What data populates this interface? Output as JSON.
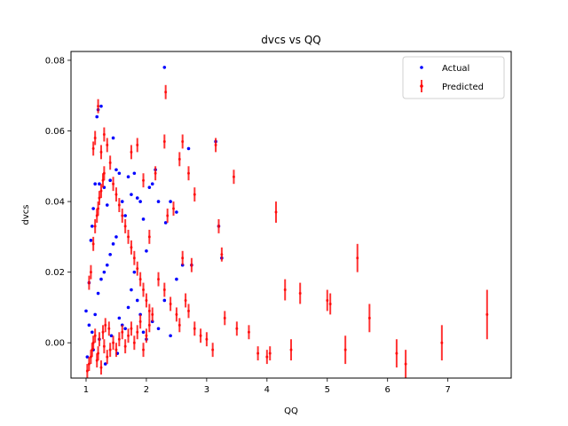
{
  "chart_data": {
    "type": "scatter",
    "title": "dvcs vs QQ",
    "xlabel": "QQ",
    "ylabel": "dvcs",
    "xlim": [
      0.75,
      8.05
    ],
    "ylim": [
      -0.01,
      0.0825
    ],
    "xticks": [
      1,
      2,
      3,
      4,
      5,
      6,
      7
    ],
    "xtick_labels": [
      "1",
      "2",
      "3",
      "4",
      "5",
      "6",
      "7"
    ],
    "yticks": [
      0.0,
      0.02,
      0.04,
      0.06,
      0.08
    ],
    "ytick_labels": [
      "0.00",
      "0.02",
      "0.04",
      "0.06",
      "0.08"
    ],
    "grid": false,
    "legend_position": "top-right",
    "colors": {
      "actual": "#0000ff",
      "predicted": "#ff0000"
    },
    "series": [
      {
        "name": "Actual",
        "kind": "points",
        "points": [
          [
            1.0,
            0.009
          ],
          [
            1.05,
            0.017
          ],
          [
            1.08,
            0.029
          ],
          [
            1.1,
            0.033
          ],
          [
            1.12,
            0.038
          ],
          [
            1.15,
            0.045
          ],
          [
            1.18,
            0.064
          ],
          [
            1.2,
            0.066
          ],
          [
            1.25,
            0.067
          ],
          [
            1.22,
            0.045
          ],
          [
            1.3,
            0.044
          ],
          [
            1.35,
            0.039
          ],
          [
            1.4,
            0.046
          ],
          [
            1.45,
            0.058
          ],
          [
            1.5,
            0.049
          ],
          [
            1.55,
            0.048
          ],
          [
            1.6,
            0.04
          ],
          [
            1.65,
            0.036
          ],
          [
            1.7,
            0.047
          ],
          [
            1.75,
            0.042
          ],
          [
            1.8,
            0.048
          ],
          [
            1.85,
            0.041
          ],
          [
            1.9,
            0.04
          ],
          [
            1.95,
            0.035
          ],
          [
            2.0,
            0.026
          ],
          [
            2.05,
            0.044
          ],
          [
            2.1,
            0.045
          ],
          [
            2.15,
            0.049
          ],
          [
            2.2,
            0.04
          ],
          [
            2.3,
            0.078
          ],
          [
            2.32,
            0.034
          ],
          [
            2.4,
            0.04
          ],
          [
            2.5,
            0.037
          ],
          [
            2.6,
            0.022
          ],
          [
            2.7,
            0.055
          ],
          [
            2.75,
            0.022
          ],
          [
            3.15,
            0.057
          ],
          [
            3.25,
            0.024
          ],
          [
            3.2,
            0.033
          ],
          [
            1.05,
            0.005
          ],
          [
            1.1,
            0.003
          ],
          [
            1.15,
            0.008
          ],
          [
            1.2,
            0.014
          ],
          [
            1.25,
            0.018
          ],
          [
            1.3,
            0.02
          ],
          [
            1.35,
            0.022
          ],
          [
            1.4,
            0.025
          ],
          [
            1.45,
            0.028
          ],
          [
            1.5,
            0.03
          ],
          [
            1.55,
            0.007
          ],
          [
            1.6,
            0.005
          ],
          [
            1.65,
            0.004
          ],
          [
            1.7,
            0.01
          ],
          [
            1.75,
            0.015
          ],
          [
            1.8,
            0.02
          ],
          [
            1.85,
            0.012
          ],
          [
            1.9,
            0.008
          ],
          [
            1.95,
            0.003
          ],
          [
            2.0,
            0.001
          ],
          [
            2.1,
            0.006
          ],
          [
            2.2,
            0.004
          ],
          [
            2.3,
            0.012
          ],
          [
            2.4,
            0.002
          ],
          [
            2.5,
            0.018
          ],
          [
            1.02,
            -0.004
          ],
          [
            1.12,
            -0.002
          ],
          [
            1.22,
            0.001
          ],
          [
            1.32,
            -0.006
          ],
          [
            1.42,
            0.002
          ],
          [
            1.52,
            -0.003
          ]
        ]
      },
      {
        "name": "Predicted",
        "kind": "errorbar",
        "points": [
          [
            1.02,
            -0.008,
            0.002
          ],
          [
            1.05,
            -0.006,
            0.002
          ],
          [
            1.08,
            -0.004,
            0.002
          ],
          [
            1.1,
            -0.002,
            0.002
          ],
          [
            1.12,
            0.0,
            0.002
          ],
          [
            1.15,
            0.002,
            0.002
          ],
          [
            1.18,
            -0.005,
            0.002
          ],
          [
            1.2,
            -0.003,
            0.002
          ],
          [
            1.22,
            0.001,
            0.002
          ],
          [
            1.25,
            -0.007,
            0.002
          ],
          [
            1.28,
            0.003,
            0.002
          ],
          [
            1.3,
            -0.001,
            0.002
          ],
          [
            1.32,
            0.005,
            0.002
          ],
          [
            1.35,
            -0.004,
            0.002
          ],
          [
            1.38,
            0.004,
            0.002
          ],
          [
            1.4,
            -0.002,
            0.002
          ],
          [
            1.45,
            0.0,
            0.002
          ],
          [
            1.5,
            -0.002,
            0.002
          ],
          [
            1.55,
            0.001,
            0.002
          ],
          [
            1.6,
            0.003,
            0.002
          ],
          [
            1.65,
            -0.001,
            0.002
          ],
          [
            1.7,
            0.002,
            0.002
          ],
          [
            1.75,
            0.004,
            0.002
          ],
          [
            1.8,
            0.0,
            0.002
          ],
          [
            1.85,
            0.003,
            0.002
          ],
          [
            1.9,
            0.006,
            0.002
          ],
          [
            1.95,
            -0.002,
            0.002
          ],
          [
            2.0,
            0.002,
            0.002
          ],
          [
            2.05,
            0.005,
            0.002
          ],
          [
            2.1,
            0.008,
            0.002
          ],
          [
            1.05,
            0.017,
            0.002
          ],
          [
            1.08,
            0.02,
            0.002
          ],
          [
            1.12,
            0.028,
            0.002
          ],
          [
            1.15,
            0.033,
            0.002
          ],
          [
            1.18,
            0.036,
            0.002
          ],
          [
            1.2,
            0.038,
            0.002
          ],
          [
            1.22,
            0.041,
            0.002
          ],
          [
            1.25,
            0.043,
            0.002
          ],
          [
            1.28,
            0.046,
            0.002
          ],
          [
            1.3,
            0.048,
            0.002
          ],
          [
            1.12,
            0.055,
            0.002
          ],
          [
            1.15,
            0.058,
            0.002
          ],
          [
            1.2,
            0.067,
            0.002
          ],
          [
            1.25,
            0.054,
            0.002
          ],
          [
            1.3,
            0.059,
            0.002
          ],
          [
            1.35,
            0.056,
            0.002
          ],
          [
            1.4,
            0.051,
            0.002
          ],
          [
            1.45,
            0.045,
            0.002
          ],
          [
            1.5,
            0.042,
            0.002
          ],
          [
            1.55,
            0.039,
            0.002
          ],
          [
            1.6,
            0.036,
            0.002
          ],
          [
            1.65,
            0.033,
            0.002
          ],
          [
            1.7,
            0.03,
            0.002
          ],
          [
            1.75,
            0.027,
            0.002
          ],
          [
            1.8,
            0.024,
            0.002
          ],
          [
            1.85,
            0.021,
            0.002
          ],
          [
            1.9,
            0.018,
            0.002
          ],
          [
            1.95,
            0.015,
            0.002
          ],
          [
            2.0,
            0.012,
            0.002
          ],
          [
            2.05,
            0.009,
            0.002
          ],
          [
            1.75,
            0.054,
            0.002
          ],
          [
            1.85,
            0.056,
            0.002
          ],
          [
            1.95,
            0.046,
            0.002
          ],
          [
            2.05,
            0.03,
            0.002
          ],
          [
            2.15,
            0.048,
            0.002
          ],
          [
            2.3,
            0.057,
            0.002
          ],
          [
            2.32,
            0.071,
            0.002
          ],
          [
            2.35,
            0.036,
            0.002
          ],
          [
            2.45,
            0.038,
            0.002
          ],
          [
            2.55,
            0.052,
            0.002
          ],
          [
            2.6,
            0.057,
            0.002
          ],
          [
            2.7,
            0.048,
            0.002
          ],
          [
            2.8,
            0.042,
            0.002
          ],
          [
            2.6,
            0.024,
            0.002
          ],
          [
            2.75,
            0.022,
            0.002
          ],
          [
            2.2,
            0.018,
            0.002
          ],
          [
            2.3,
            0.015,
            0.002
          ],
          [
            2.4,
            0.011,
            0.002
          ],
          [
            2.5,
            0.008,
            0.002
          ],
          [
            2.55,
            0.005,
            0.002
          ],
          [
            2.65,
            0.012,
            0.002
          ],
          [
            2.7,
            0.009,
            0.002
          ],
          [
            2.8,
            0.004,
            0.002
          ],
          [
            2.9,
            0.002,
            0.002
          ],
          [
            3.0,
            0.001,
            0.002
          ],
          [
            3.1,
            -0.002,
            0.002
          ],
          [
            3.15,
            0.056,
            0.002
          ],
          [
            3.2,
            0.033,
            0.002
          ],
          [
            3.25,
            0.025,
            0.002
          ],
          [
            3.3,
            0.007,
            0.002
          ],
          [
            3.45,
            0.047,
            0.002
          ],
          [
            3.5,
            0.004,
            0.002
          ],
          [
            3.7,
            0.003,
            0.002
          ],
          [
            3.85,
            -0.003,
            0.002
          ],
          [
            4.0,
            -0.004,
            0.002
          ],
          [
            4.05,
            -0.003,
            0.002
          ],
          [
            4.15,
            0.037,
            0.003
          ],
          [
            4.3,
            0.015,
            0.003
          ],
          [
            4.4,
            -0.002,
            0.003
          ],
          [
            4.55,
            0.014,
            0.003
          ],
          [
            5.0,
            0.012,
            0.003
          ],
          [
            5.05,
            0.011,
            0.003
          ],
          [
            5.3,
            -0.002,
            0.004
          ],
          [
            5.5,
            0.024,
            0.004
          ],
          [
            5.7,
            0.007,
            0.004
          ],
          [
            6.15,
            -0.003,
            0.004
          ],
          [
            6.3,
            -0.006,
            0.004
          ],
          [
            6.9,
            0.0,
            0.005
          ],
          [
            7.65,
            0.008,
            0.007
          ]
        ]
      }
    ]
  }
}
